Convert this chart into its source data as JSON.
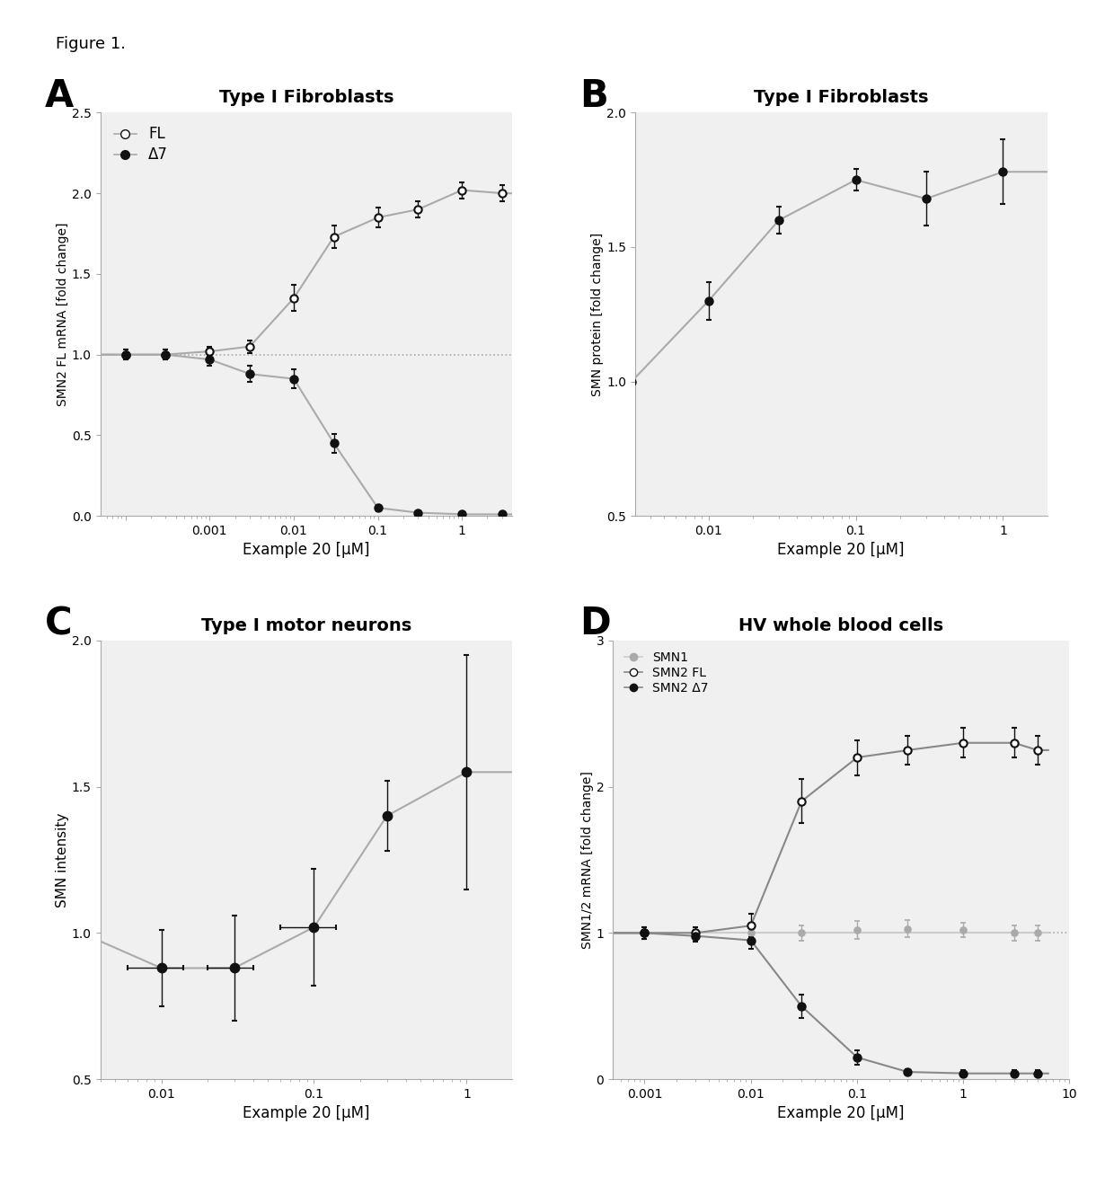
{
  "fig_label": "Figure 1.",
  "panel_A": {
    "title": "Type I Fibroblasts",
    "xlabel": "Example 20 [μM]",
    "ylabel": "SMN2 FL mRNA [fold change]",
    "panel_label": "A",
    "FL_x": [
      0.0001,
      0.0003,
      0.001,
      0.003,
      0.01,
      0.03,
      0.1,
      0.3,
      1.0,
      3.0
    ],
    "FL_y": [
      1.0,
      1.0,
      1.02,
      1.05,
      1.35,
      1.73,
      1.85,
      1.9,
      2.02,
      2.0
    ],
    "FL_yerr": [
      0.03,
      0.03,
      0.03,
      0.04,
      0.08,
      0.07,
      0.06,
      0.05,
      0.05,
      0.05
    ],
    "D7_x": [
      0.0001,
      0.0003,
      0.001,
      0.003,
      0.01,
      0.03,
      0.1,
      0.3,
      1.0,
      3.0
    ],
    "D7_y": [
      1.0,
      1.0,
      0.97,
      0.88,
      0.85,
      0.45,
      0.05,
      0.02,
      0.01,
      0.01
    ],
    "D7_yerr": [
      0.03,
      0.03,
      0.04,
      0.05,
      0.06,
      0.06,
      0.02,
      0.01,
      0.01,
      0.01
    ],
    "ylim": [
      0.0,
      2.5
    ],
    "yticks": [
      0.0,
      0.5,
      1.0,
      1.5,
      2.0,
      2.5
    ],
    "xtick_vals": [
      0.0001,
      0.001,
      0.01,
      0.1,
      1.0
    ],
    "xtick_labels": [
      "",
      "0.001",
      "0.01",
      "0.1",
      "1"
    ]
  },
  "panel_B": {
    "title": "Type I Fibroblasts",
    "xlabel": "Example 20 [μM]",
    "ylabel": "SMN protein [fold change]",
    "panel_label": "B",
    "x": [
      0.003,
      0.01,
      0.03,
      0.1,
      0.3,
      1.0
    ],
    "y": [
      1.0,
      1.3,
      1.6,
      1.75,
      1.68,
      1.78
    ],
    "yerr": [
      0.03,
      0.07,
      0.05,
      0.04,
      0.1,
      0.12
    ],
    "ylim": [
      0.5,
      2.0
    ],
    "yticks": [
      0.5,
      1.0,
      1.5,
      2.0
    ],
    "xtick_vals": [
      0.01,
      0.1,
      1.0
    ],
    "xtick_labels": [
      "0.01",
      "0.1",
      "1"
    ]
  },
  "panel_C": {
    "title": "Type I motor neurons",
    "xlabel": "Example 20 [μM]",
    "ylabel": "SMN intensity",
    "panel_label": "C",
    "x": [
      0.003,
      0.01,
      0.03,
      0.1,
      0.3,
      1.0
    ],
    "y": [
      1.0,
      0.88,
      0.88,
      1.02,
      1.4,
      1.55
    ],
    "yerr": [
      0.12,
      0.13,
      0.18,
      0.2,
      0.12,
      0.4
    ],
    "xerr": [
      0.0,
      0.004,
      0.01,
      0.04,
      0.0,
      0.0
    ],
    "ylim": [
      0.5,
      2.0
    ],
    "yticks": [
      0.5,
      1.0,
      1.5,
      2.0
    ],
    "xtick_vals": [
      0.01,
      0.1,
      1.0
    ],
    "xtick_labels": [
      "0.01",
      "0.1",
      "1"
    ]
  },
  "panel_D": {
    "title": "HV whole blood cells",
    "xlabel": "Example 20 [μM]",
    "ylabel": "SMN1/2 mRNA [fold change]",
    "panel_label": "D",
    "SMN1_x": [
      0.0003,
      0.001,
      0.003,
      0.01,
      0.03,
      0.1,
      0.3,
      1.0,
      3.0,
      5.0
    ],
    "SMN1_y": [
      1.0,
      1.0,
      1.0,
      1.0,
      1.0,
      1.02,
      1.03,
      1.02,
      1.0,
      1.0
    ],
    "SMN1_yerr": [
      0.05,
      0.04,
      0.04,
      0.05,
      0.05,
      0.06,
      0.06,
      0.05,
      0.05,
      0.05
    ],
    "FL_x": [
      0.0003,
      0.001,
      0.003,
      0.01,
      0.03,
      0.1,
      0.3,
      1.0,
      3.0,
      5.0
    ],
    "FL_y": [
      1.0,
      1.0,
      1.0,
      1.05,
      1.9,
      2.2,
      2.25,
      2.3,
      2.3,
      2.25
    ],
    "FL_yerr": [
      0.05,
      0.04,
      0.04,
      0.08,
      0.15,
      0.12,
      0.1,
      0.1,
      0.1,
      0.1
    ],
    "D7_x": [
      0.0003,
      0.001,
      0.003,
      0.01,
      0.03,
      0.1,
      0.3,
      1.0,
      3.0,
      5.0
    ],
    "D7_y": [
      1.0,
      1.0,
      0.98,
      0.95,
      0.5,
      0.15,
      0.05,
      0.04,
      0.04,
      0.04
    ],
    "D7_yerr": [
      0.05,
      0.04,
      0.04,
      0.06,
      0.08,
      0.05,
      0.02,
      0.02,
      0.02,
      0.02
    ],
    "ylim": [
      0.0,
      3.0
    ],
    "yticks": [
      0,
      1,
      2,
      3
    ],
    "xtick_vals": [
      0.001,
      0.01,
      0.1,
      1.0,
      10.0
    ],
    "xtick_labels": [
      "0.001",
      "0.01",
      "0.1",
      "1",
      "10"
    ]
  }
}
